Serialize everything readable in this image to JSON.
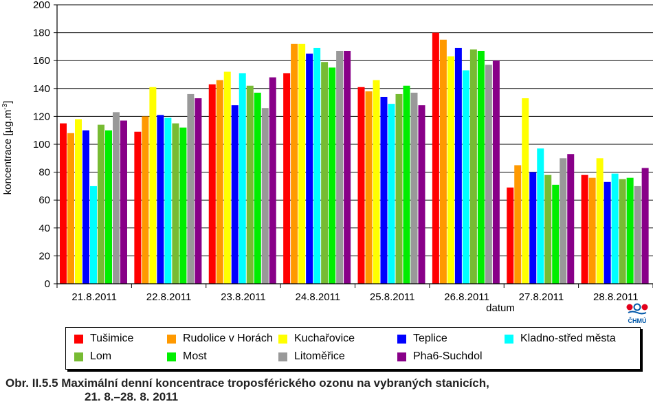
{
  "chart_data": {
    "type": "bar",
    "ylabel": "koncentrace [µg.m-3]",
    "ylabel_main": "koncentrace [µg.m",
    "ylabel_sup": "-3",
    "ylabel_close": "]",
    "xlabel": "datum",
    "ylim": [
      0,
      200
    ],
    "yticks": [
      "0",
      "20",
      "40",
      "60",
      "80",
      "100",
      "120",
      "140",
      "160",
      "180",
      "200"
    ],
    "grid": "horizontal",
    "legend_position": "bottom",
    "categories": [
      "21.8.2011",
      "22.8.2011",
      "23.8.2011",
      "24.8.2011",
      "25.8.2011",
      "26.8.2011",
      "27.8.2011",
      "28.8.2011"
    ],
    "series": [
      {
        "name": "Tušimice",
        "color": "#ff0000",
        "values": [
          115,
          109,
          143,
          151,
          141,
          180,
          69,
          78
        ]
      },
      {
        "name": "Rudolice v Horách",
        "color": "#ff9900",
        "values": [
          108,
          120,
          146,
          172,
          138,
          175,
          85,
          76
        ]
      },
      {
        "name": "Kuchařovice",
        "color": "#ffff00",
        "values": [
          118,
          141,
          152,
          172,
          146,
          163,
          133,
          90
        ]
      },
      {
        "name": "Teplice",
        "color": "#0000ff",
        "values": [
          110,
          121,
          128,
          165,
          134,
          169,
          80,
          73
        ]
      },
      {
        "name": "Kladno-střed města",
        "color": "#00ffff",
        "values": [
          70,
          119,
          151,
          169,
          129,
          153,
          97,
          79
        ]
      },
      {
        "name": "Lom",
        "color": "#77bb33",
        "values": [
          114,
          115,
          142,
          159,
          136,
          168,
          78,
          75
        ]
      },
      {
        "name": "Most",
        "color": "#00ee00",
        "values": [
          110,
          112,
          137,
          155,
          142,
          167,
          71,
          76
        ]
      },
      {
        "name": "Litoměřice",
        "color": "#999999",
        "values": [
          123,
          136,
          126,
          167,
          137,
          157,
          90,
          70
        ]
      },
      {
        "name": "Pha6-Suchdol",
        "color": "#880088",
        "values": [
          117,
          133,
          148,
          167,
          128,
          160,
          93,
          83
        ]
      }
    ]
  },
  "caption": {
    "line1": "Obr. II.5.5  Maximální denní koncentrace troposférického ozonu na vybraných stanicích,",
    "line2": "21. 8.–28. 8. 2011"
  },
  "logo": {
    "text": "ČHMÚ"
  }
}
